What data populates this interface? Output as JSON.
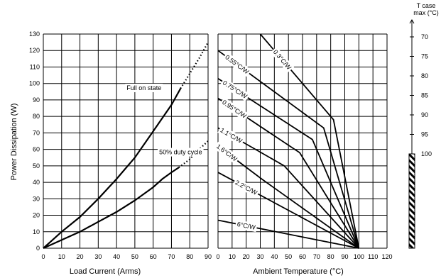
{
  "chart_data": [
    {
      "type": "line",
      "xlabel": "Load Current (Arms)",
      "ylabel": "Power Dissipation (W)",
      "xlim": [
        0,
        90
      ],
      "ylim": [
        0,
        130
      ],
      "xticks": [
        "0",
        "10",
        "20",
        "30",
        "40",
        "50",
        "60",
        "70",
        "80",
        "90"
      ],
      "yticks": [
        "0",
        "10",
        "20",
        "30",
        "40",
        "50",
        "60",
        "70",
        "80",
        "90",
        "100",
        "110",
        "120",
        "130"
      ],
      "grid": true,
      "series": [
        {
          "name": "Full on state",
          "x": [
            0,
            5,
            10,
            20,
            30,
            40,
            50,
            60,
            70,
            75
          ],
          "y": [
            0,
            5,
            10,
            19,
            30,
            42,
            55,
            71,
            87,
            97
          ],
          "extrapolated": {
            "x": [
              75,
              80,
              85,
              90
            ],
            "y": [
              97,
              106,
              115,
              125
            ]
          }
        },
        {
          "name": "50% duty cycle",
          "x": [
            0,
            10,
            20,
            30,
            40,
            50,
            60,
            65,
            70,
            74
          ],
          "y": [
            0,
            5,
            10,
            16,
            22,
            29,
            37,
            42,
            46,
            49
          ],
          "extrapolated": {
            "x": [
              74,
              80,
              85,
              90
            ],
            "y": [
              49,
              54,
              60,
              65
            ]
          }
        }
      ]
    },
    {
      "type": "line",
      "xlabel": "Ambient Temperature (°C)",
      "xlim": [
        0,
        120
      ],
      "ylim": [
        0,
        130
      ],
      "xticks": [
        "0",
        "10",
        "20",
        "30",
        "40",
        "50",
        "60",
        "70",
        "80",
        "90",
        "100",
        "110",
        "120"
      ],
      "grid": true,
      "series": [
        {
          "name": "0.3°C/W",
          "x": [
            30,
            82,
            100
          ],
          "y": [
            130,
            78,
            0
          ]
        },
        {
          "name": "0.55°C/W",
          "x": [
            0,
            75,
            100
          ],
          "y": [
            120,
            73,
            0
          ]
        },
        {
          "name": "0.75°C/W",
          "x": [
            0,
            67,
            100
          ],
          "y": [
            103,
            66,
            0
          ]
        },
        {
          "name": "0.95°C/W",
          "x": [
            0,
            58,
            100
          ],
          "y": [
            91,
            58,
            0
          ]
        },
        {
          "name": "1.1°C/W",
          "x": [
            0,
            47,
            100
          ],
          "y": [
            73,
            50,
            0
          ]
        },
        {
          "name": "1.6°C/W",
          "x": [
            0,
            31,
            100
          ],
          "y": [
            62,
            42,
            0
          ]
        },
        {
          "name": "2.2°C/W",
          "x": [
            0,
            100
          ],
          "y": [
            46,
            0
          ]
        },
        {
          "name": "6°C/W",
          "x": [
            0,
            100
          ],
          "y": [
            17,
            0
          ]
        }
      ]
    },
    {
      "type": "scale",
      "title_line1": "T case",
      "title_line2": "max (°C)",
      "ticks": [
        "70",
        "75",
        "80",
        "85",
        "90",
        "95",
        "100"
      ]
    }
  ]
}
